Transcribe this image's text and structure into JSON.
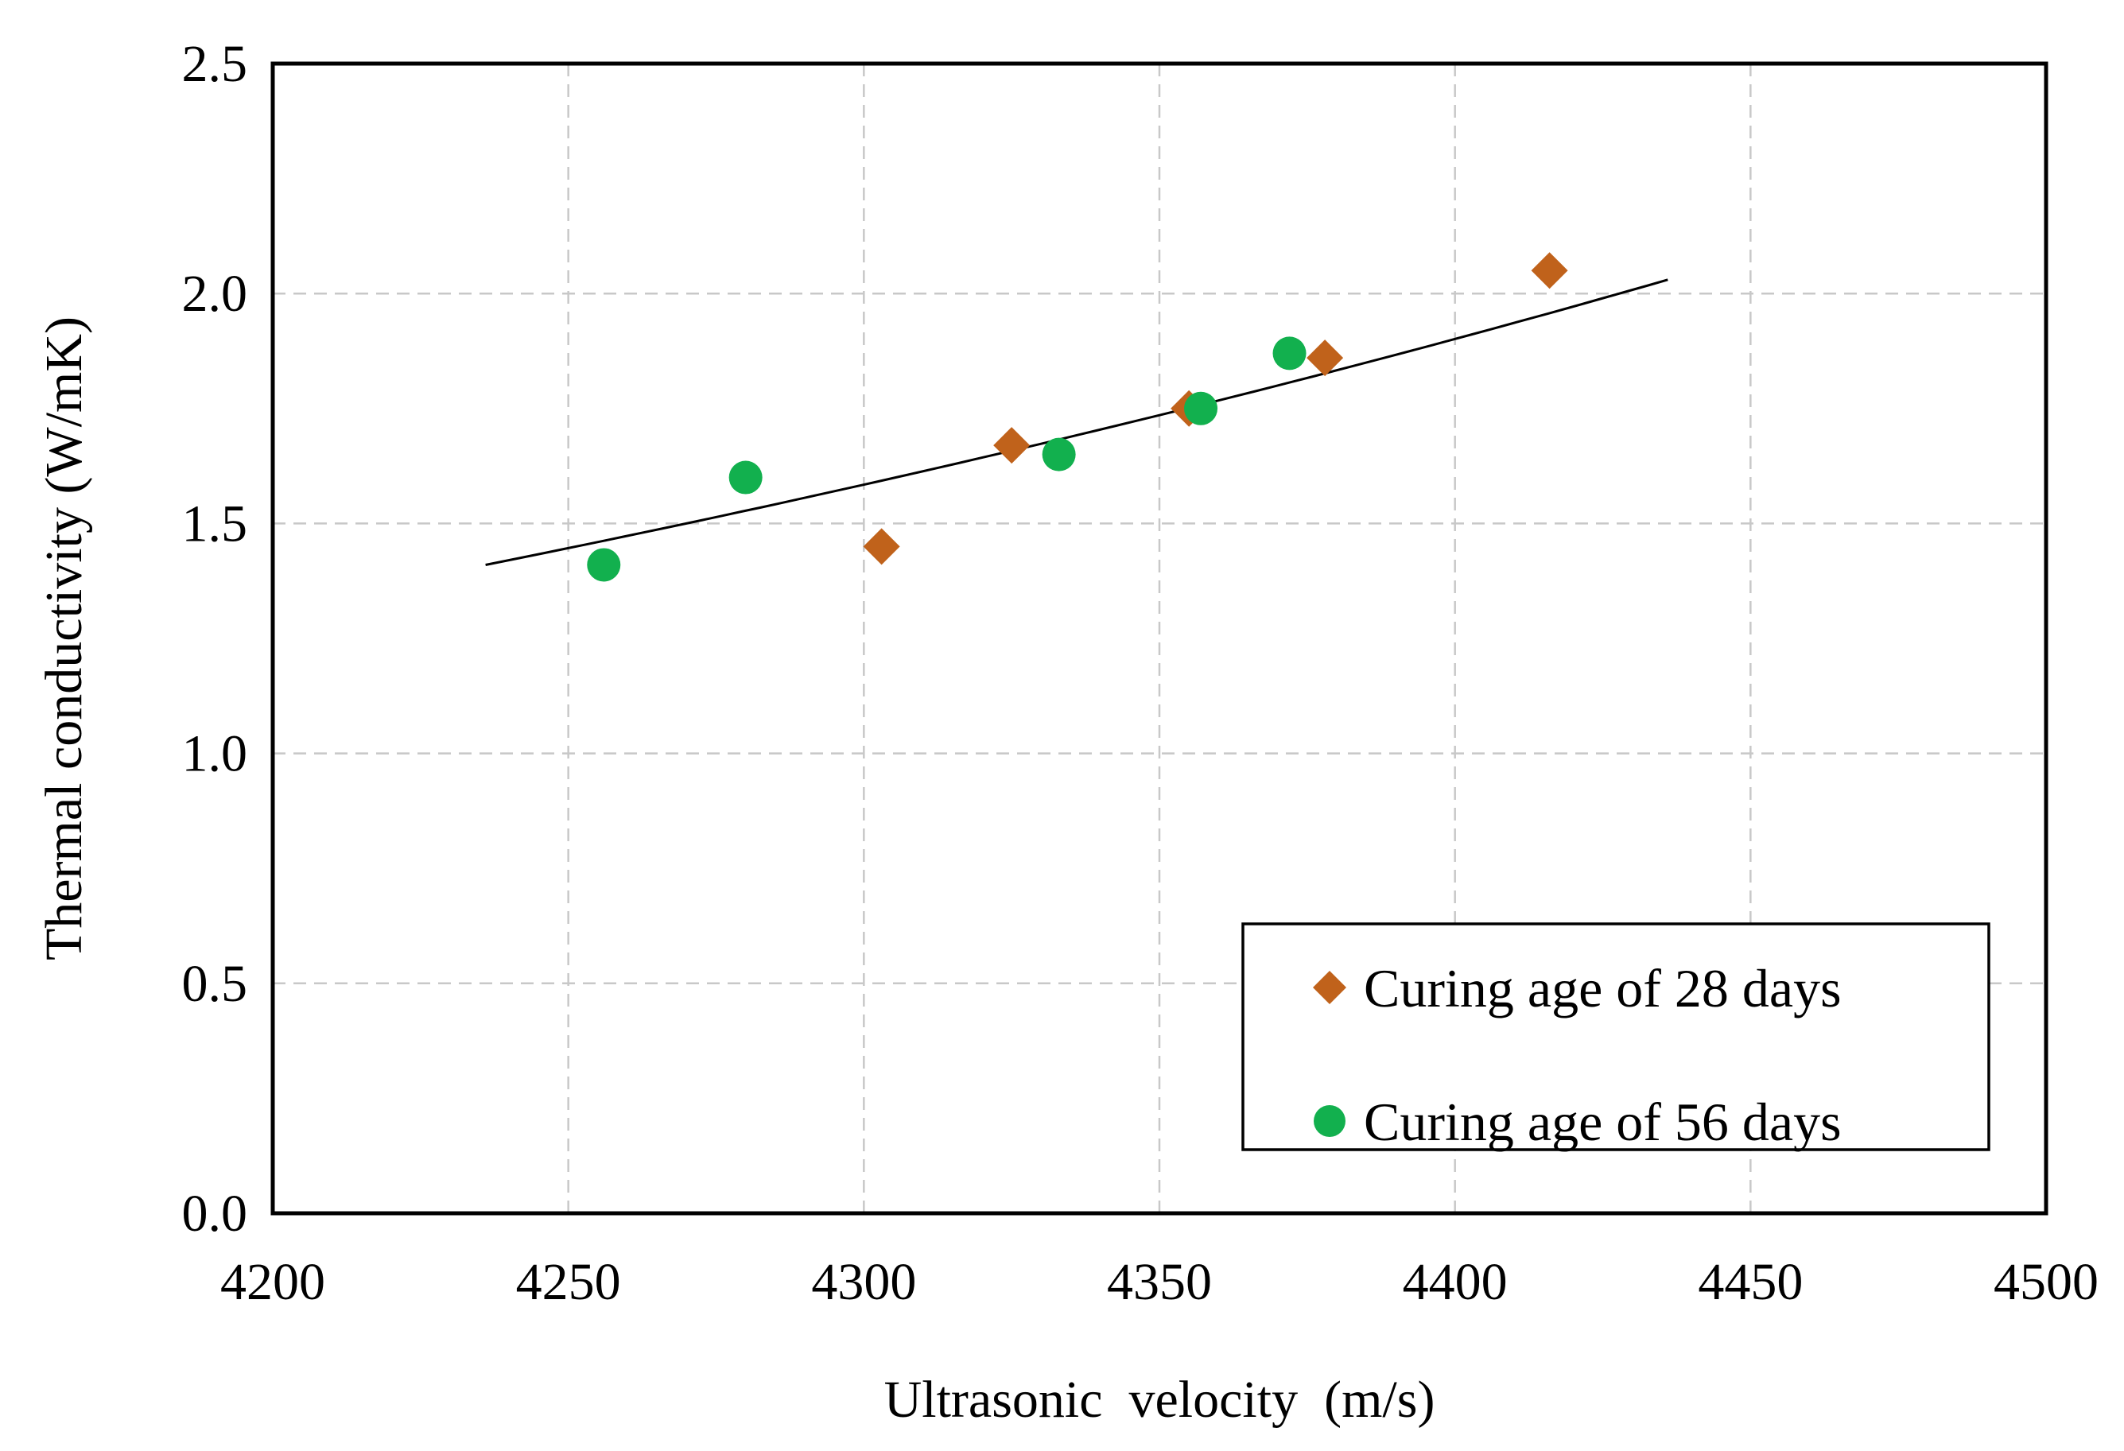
{
  "chart_data": {
    "type": "scatter",
    "title": "",
    "xlabel": "Ultrasonic  velocity  (m/s)",
    "ylabel": "Thermal conductivity (W/mK)",
    "xlim": [
      4200,
      4500
    ],
    "ylim": [
      0.0,
      2.5
    ],
    "x_ticks": [
      4200,
      4250,
      4300,
      4350,
      4400,
      4450,
      4500
    ],
    "x_tick_labels": [
      "4200",
      "4250",
      "4300",
      "4350",
      "4400",
      "4450",
      "4500"
    ],
    "y_ticks": [
      0.0,
      0.5,
      1.0,
      1.5,
      2.0,
      2.5
    ],
    "y_tick_labels": [
      "0.0",
      "0.5",
      "1.0",
      "1.5",
      "2.0",
      "2.5"
    ],
    "grid": true,
    "legend_position": "bottom-right",
    "series": [
      {
        "name": "Curing age of 28 days",
        "marker": "diamond",
        "color": "#C0621B",
        "points": [
          {
            "x": 4303,
            "y": 1.45
          },
          {
            "x": 4325,
            "y": 1.67
          },
          {
            "x": 4355,
            "y": 1.75
          },
          {
            "x": 4378,
            "y": 1.86
          },
          {
            "x": 4416,
            "y": 2.05
          }
        ]
      },
      {
        "name": "Curing age of 56 days",
        "marker": "circle",
        "color": "#12B04E",
        "points": [
          {
            "x": 4256,
            "y": 1.41
          },
          {
            "x": 4280,
            "y": 1.6
          },
          {
            "x": 4333,
            "y": 1.65
          },
          {
            "x": 4357,
            "y": 1.75
          },
          {
            "x": 4372,
            "y": 1.87
          }
        ]
      }
    ],
    "trendline": {
      "type": "exponential",
      "color": "#000000",
      "x_range": [
        4236,
        4436
      ],
      "points": [
        {
          "x": 4236,
          "y": 1.41
        },
        {
          "x": 4436,
          "y": 2.03
        }
      ]
    }
  }
}
